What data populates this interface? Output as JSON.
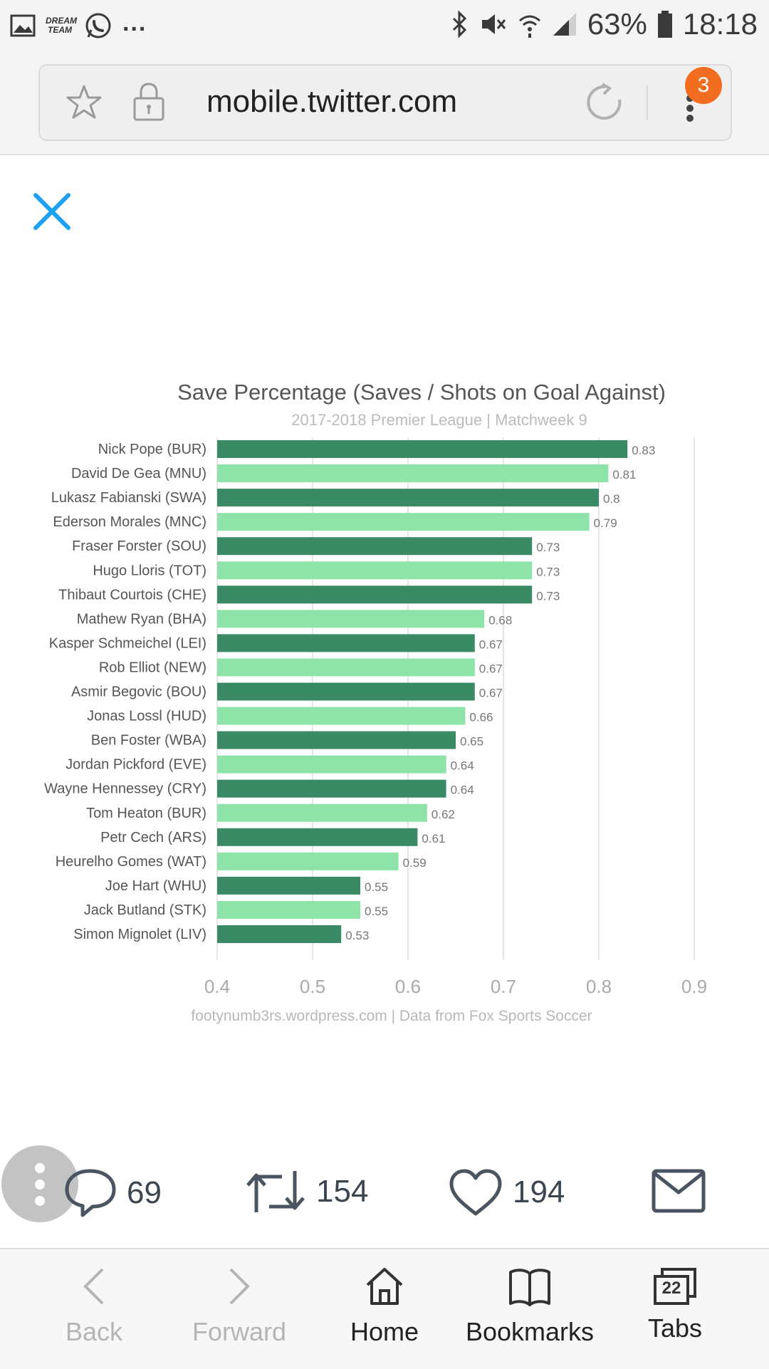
{
  "status_bar": {
    "notif_brand": "DREAM TEAM",
    "more": "...",
    "battery": "63%",
    "time": "18:18"
  },
  "browser": {
    "url": "mobile.twitter.com",
    "menu_badge": "3"
  },
  "tweet_actions": {
    "replies": "69",
    "retweets": "154",
    "likes": "194"
  },
  "bottom_nav": {
    "back": "Back",
    "forward": "Forward",
    "home": "Home",
    "bookmarks": "Bookmarks",
    "tabs": "Tabs",
    "tab_count": "22"
  },
  "colors": {
    "dark_bar": "#3a8a66",
    "light_bar": "#8ee3a8",
    "close_blue": "#1da1f2",
    "badge_orange": "#f36d21"
  },
  "chart_data": {
    "type": "bar",
    "orientation": "horizontal",
    "title": "Save Percentage (Saves / Shots on Goal Against)",
    "subtitle": "2017-2018 Premier League | Matchweek 9",
    "footer": "footynumb3rs.wordpress.com | Data from Fox Sports Soccer",
    "xlim": [
      0.4,
      0.9
    ],
    "x_ticks": [
      "0.4",
      "0.5",
      "0.6",
      "0.7",
      "0.8",
      "0.9"
    ],
    "grid": "vertical",
    "categories": [
      "Nick Pope (BUR)",
      "David De Gea (MNU)",
      "Lukasz Fabianski (SWA)",
      "Ederson Morales (MNC)",
      "Fraser Forster (SOU)",
      "Hugo Lloris (TOT)",
      "Thibaut Courtois (CHE)",
      "Mathew Ryan (BHA)",
      "Kasper Schmeichel (LEI)",
      "Rob Elliot (NEW)",
      "Asmir Begovic (BOU)",
      "Jonas Lossl (HUD)",
      "Ben Foster (WBA)",
      "Jordan Pickford (EVE)",
      "Wayne Hennessey (CRY)",
      "Tom Heaton (BUR)",
      "Petr Cech (ARS)",
      "Heurelho Gomes (WAT)",
      "Joe Hart (WHU)",
      "Jack Butland (STK)",
      "Simon Mignolet (LIV)"
    ],
    "values": [
      0.83,
      0.81,
      0.8,
      0.79,
      0.73,
      0.73,
      0.73,
      0.68,
      0.67,
      0.67,
      0.67,
      0.66,
      0.65,
      0.64,
      0.64,
      0.62,
      0.61,
      0.59,
      0.55,
      0.55,
      0.53
    ],
    "value_labels": [
      "0.83",
      "0.81",
      "0.8",
      "0.79",
      "0.73",
      "0.73",
      "0.73",
      "0.68",
      "0.67",
      "0.67",
      "0.67",
      "0.66",
      "0.65",
      "0.64",
      "0.64",
      "0.62",
      "0.61",
      "0.59",
      "0.55",
      "0.55",
      "0.53"
    ]
  }
}
